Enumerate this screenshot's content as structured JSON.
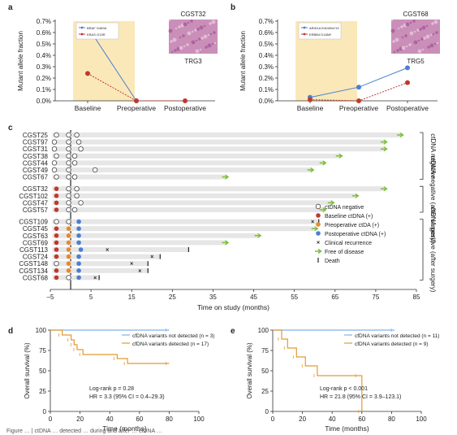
{
  "panels": {
    "a": "a",
    "b": "b",
    "c": "c",
    "d": "d",
    "e": "e"
  },
  "colors": {
    "blue": "#4a7fd0",
    "red": "#c0392b",
    "orange": "#e68a2e",
    "green": "#7bbf3a",
    "shade": "#fbe8b8",
    "bar": "#e6e6e6",
    "km_blue": "#7fb2e8",
    "km_orange": "#e39a33",
    "histo": "#c98fb8"
  },
  "chart_data": [
    {
      "id": "a",
      "type": "line",
      "categories": [
        "Baseline",
        "Preoperative",
        "Postoperative"
      ],
      "ylabel": "Mutant allele fraction",
      "yticks": [
        "0.0%",
        "0.1%",
        "0.2%",
        "0.3%",
        "0.4%",
        "0.5%",
        "0.6%",
        "0.7%"
      ],
      "ylim": [
        0,
        0.7
      ],
      "series": [
        {
          "name": "BRAF G469A",
          "color": "blue",
          "values": [
            0.65,
            0.0,
            null
          ]
        },
        {
          "name": "KRAS G13R",
          "color": "red",
          "values": [
            0.24,
            0.0,
            0.0
          ]
        }
      ],
      "image_title": "CGST32",
      "image_caption": "TRG3"
    },
    {
      "id": "b",
      "type": "line",
      "categories": [
        "Baseline",
        "Preoperative",
        "Postoperative"
      ],
      "ylabel": "Mutant allele fraction",
      "yticks": [
        "0.0%",
        "0.1%",
        "0.2%",
        "0.3%",
        "0.4%",
        "0.5%",
        "0.6%",
        "0.7%"
      ],
      "ylim": [
        0,
        0.7
      ],
      "series": [
        {
          "name": "ARID1A E404Kfs*13",
          "color": "blue",
          "values": [
            0.03,
            0.12,
            0.29
          ]
        },
        {
          "name": "ERBB4 D1188*",
          "color": "red",
          "values": [
            0.01,
            0.0,
            0.16
          ]
        }
      ],
      "image_title": "CGST68",
      "image_caption": "TRG5"
    },
    {
      "id": "c",
      "type": "timeline",
      "xlabel": "Time on study (months)",
      "xticks": [
        -5,
        5,
        15,
        25,
        35,
        45,
        55,
        65,
        75,
        85
      ],
      "xlim": [
        -5,
        85
      ],
      "group_labels": [
        "ctDNA negative",
        "ctDNA negative (after surgery)",
        "ctDNA positive (after surgery)"
      ],
      "legend": [
        {
          "key": "neg",
          "label": "ctDNA negative"
        },
        {
          "key": "base",
          "label": "Baseline ctDNA (+)"
        },
        {
          "key": "pre",
          "label": "Preoperative ctDA (+)"
        },
        {
          "key": "post",
          "label": "Postoperative ctDNA (+)"
        },
        {
          "key": "rec",
          "label": "Clinical recurrence"
        },
        {
          "key": "free",
          "label": "Free of disease"
        },
        {
          "key": "death",
          "label": "Death"
        }
      ],
      "patients": [
        {
          "name": "CGST25",
          "group": 0,
          "end": 81,
          "status": "free",
          "marks": [
            {
              "t": -3.5,
              "k": "neg"
            },
            {
              "t": -0.5,
              "k": "neg"
            },
            {
              "t": 1.5,
              "k": "neg"
            }
          ]
        },
        {
          "name": "CGST97",
          "group": 0,
          "end": 77,
          "status": "free",
          "marks": [
            {
              "t": -4,
              "k": "neg"
            },
            {
              "t": -0.5,
              "k": "neg"
            },
            {
              "t": 2,
              "k": "neg"
            }
          ]
        },
        {
          "name": "CGST31",
          "group": 0,
          "end": 77,
          "status": "free",
          "marks": [
            {
              "t": -4,
              "k": "neg"
            },
            {
              "t": -0.5,
              "k": "neg"
            },
            {
              "t": 2.5,
              "k": "neg"
            }
          ]
        },
        {
          "name": "CGST38",
          "group": 0,
          "end": 66,
          "status": "free",
          "marks": [
            {
              "t": -3.5,
              "k": "neg"
            },
            {
              "t": -0.5,
              "k": "neg"
            },
            {
              "t": 1,
              "k": "neg"
            }
          ]
        },
        {
          "name": "CGST44",
          "group": 0,
          "end": 62,
          "status": "free",
          "marks": [
            {
              "t": -4,
              "k": "neg"
            },
            {
              "t": -0.5,
              "k": "neg"
            },
            {
              "t": 1,
              "k": "neg"
            }
          ]
        },
        {
          "name": "CGST49",
          "group": 0,
          "end": 59,
          "status": "free",
          "marks": [
            {
              "t": -4,
              "k": "neg"
            },
            {
              "t": -0.5,
              "k": "neg"
            },
            {
              "t": 6,
              "k": "neg"
            }
          ]
        },
        {
          "name": "CGST67",
          "group": 0,
          "end": 38,
          "status": "free",
          "marks": [
            {
              "t": -3.5,
              "k": "neg"
            },
            {
              "t": -0.5,
              "k": "neg"
            },
            {
              "t": 1,
              "k": "neg"
            }
          ]
        },
        {
          "name": "CGST32",
          "group": 1,
          "end": 77,
          "status": "free",
          "marks": [
            {
              "t": -3.5,
              "k": "base"
            },
            {
              "t": -0.5,
              "k": "neg"
            },
            {
              "t": 1.5,
              "k": "neg"
            }
          ]
        },
        {
          "name": "CGST102",
          "group": 1,
          "end": 70,
          "status": "free",
          "marks": [
            {
              "t": -3.5,
              "k": "base"
            },
            {
              "t": -0.5,
              "k": "neg"
            },
            {
              "t": 1.5,
              "k": "neg"
            }
          ]
        },
        {
          "name": "CGST47",
          "group": 1,
          "end": 64,
          "status": "free",
          "marks": [
            {
              "t": -3.5,
              "k": "base"
            },
            {
              "t": -0.5,
              "k": "neg"
            },
            {
              "t": 2.5,
              "k": "neg"
            }
          ]
        },
        {
          "name": "CGST57",
          "group": 1,
          "end": 62,
          "status": "free",
          "marks": [
            {
              "t": -3.5,
              "k": "base"
            },
            {
              "t": -0.5,
              "k": "neg"
            },
            {
              "t": 1,
              "k": "neg"
            }
          ]
        },
        {
          "name": "CGST109",
          "group": 2,
          "end": 61,
          "status": "death",
          "marks": [
            {
              "t": -3.5,
              "k": "neg"
            },
            {
              "t": -0.5,
              "k": "neg"
            },
            {
              "t": 2,
              "k": "post"
            },
            {
              "t": 59.5,
              "k": "rec"
            }
          ]
        },
        {
          "name": "CGST45",
          "group": 2,
          "end": 60,
          "status": "free",
          "marks": [
            {
              "t": -3.5,
              "k": "base"
            },
            {
              "t": -0.5,
              "k": "pre"
            },
            {
              "t": 2,
              "k": "post"
            }
          ]
        },
        {
          "name": "CGST63",
          "group": 2,
          "end": 46,
          "status": "free",
          "marks": [
            {
              "t": -3.5,
              "k": "base"
            },
            {
              "t": -0.5,
              "k": "pre"
            },
            {
              "t": 2,
              "k": "post"
            }
          ]
        },
        {
          "name": "CGST69",
          "group": 2,
          "end": 38,
          "status": "free",
          "marks": [
            {
              "t": -3.5,
              "k": "base"
            },
            {
              "t": -0.5,
              "k": "pre"
            },
            {
              "t": 2,
              "k": "post"
            }
          ]
        },
        {
          "name": "CGST113",
          "group": 2,
          "end": 29,
          "status": "death",
          "marks": [
            {
              "t": -3.5,
              "k": "base"
            },
            {
              "t": -0.5,
              "k": "pre"
            },
            {
              "t": 2.5,
              "k": "post"
            },
            {
              "t": 9,
              "k": "rec"
            }
          ]
        },
        {
          "name": "CGST24",
          "group": 2,
          "end": 22,
          "status": "death",
          "marks": [
            {
              "t": -3.5,
              "k": "base"
            },
            {
              "t": -0.5,
              "k": "pre"
            },
            {
              "t": 2,
              "k": "post"
            },
            {
              "t": 20,
              "k": "rec"
            }
          ]
        },
        {
          "name": "CGST148",
          "group": 2,
          "end": 19,
          "status": "death",
          "marks": [
            {
              "t": -3.5,
              "k": "neg"
            },
            {
              "t": -0.5,
              "k": "pre"
            },
            {
              "t": 2,
              "k": "post"
            },
            {
              "t": 15,
              "k": "rec"
            }
          ]
        },
        {
          "name": "CGST134",
          "group": 2,
          "end": 19,
          "status": "death",
          "marks": [
            {
              "t": -3.5,
              "k": "base"
            },
            {
              "t": -0.5,
              "k": "pre"
            },
            {
              "t": 2,
              "k": "post"
            },
            {
              "t": 17,
              "k": "rec"
            }
          ]
        },
        {
          "name": "CGST68",
          "group": 2,
          "end": 7,
          "status": "death",
          "marks": [
            {
              "t": -3.5,
              "k": "base"
            },
            {
              "t": -0.5,
              "k": "neg"
            },
            {
              "t": 2,
              "k": "post"
            },
            {
              "t": 6,
              "k": "rec"
            }
          ]
        }
      ]
    },
    {
      "id": "d",
      "type": "km",
      "xlabel": "Time (months)",
      "ylabel": "Overall survival (%)",
      "xticks": [
        0,
        20,
        40,
        60,
        80,
        100
      ],
      "yticks": [
        0,
        25,
        50,
        75,
        100
      ],
      "xlim": [
        0,
        100
      ],
      "ylim": [
        0,
        100
      ],
      "series": [
        {
          "name": "cfDNA variants not detected (n = 3)",
          "color": "km_blue",
          "steps": [
            [
              0,
              100
            ],
            [
              80,
              100
            ]
          ]
        },
        {
          "name": "cfDNA variants detected (n = 17)",
          "color": "km_orange",
          "steps": [
            [
              0,
              100
            ],
            [
              8,
              94
            ],
            [
              14,
              88
            ],
            [
              16,
              82
            ],
            [
              18,
              76
            ],
            [
              22,
              70
            ],
            [
              45,
              65
            ],
            [
              52,
              59
            ],
            [
              80,
              59
            ]
          ]
        }
      ],
      "stats": [
        "Log-rank p = 0.28",
        "HR = 3.3 (95% CI = 0.4–29.3)"
      ]
    },
    {
      "id": "e",
      "type": "km",
      "xlabel": "Time (months)",
      "ylabel": "Overall survival (%)",
      "xticks": [
        0,
        20,
        40,
        60,
        80,
        100
      ],
      "yticks": [
        0,
        25,
        50,
        75,
        100
      ],
      "xlim": [
        0,
        100
      ],
      "ylim": [
        0,
        100
      ],
      "series": [
        {
          "name": "cfDNA variants not detected (n = 11)",
          "color": "km_blue",
          "steps": [
            [
              0,
              100
            ],
            [
              82,
              100
            ]
          ]
        },
        {
          "name": "cfDNA variants detected (n = 9)",
          "color": "km_orange",
          "steps": [
            [
              0,
              100
            ],
            [
              6,
              89
            ],
            [
              10,
              78
            ],
            [
              16,
              67
            ],
            [
              22,
              56
            ],
            [
              30,
              44
            ],
            [
              58,
              44
            ],
            [
              60,
              0
            ]
          ]
        }
      ],
      "stats": [
        "Log-rank p < 0.001",
        "HR = 21.8 (95% CI = 3.9–123.1)"
      ]
    }
  ],
  "caption": "Figure … | ctDNA … detected … during and after … ctDNA …"
}
